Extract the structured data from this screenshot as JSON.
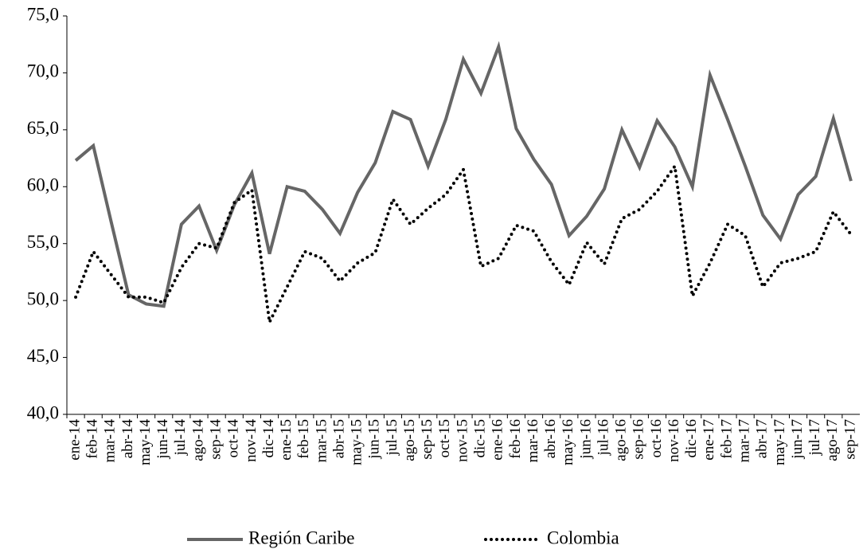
{
  "chart_data": {
    "type": "line",
    "categories": [
      "ene-14",
      "feb-14",
      "mar-14",
      "abr-14",
      "may-14",
      "jun-14",
      "jul-14",
      "ago-14",
      "sep-14",
      "oct-14",
      "nov-14",
      "dic-14",
      "ene-15",
      "feb-15",
      "mar-15",
      "abr-15",
      "may-15",
      "jun-15",
      "jul-15",
      "ago-15",
      "sep-15",
      "oct-15",
      "nov-15",
      "dic-15",
      "ene-16",
      "feb-16",
      "mar-16",
      "abr-16",
      "may-16",
      "jun-16",
      "jul-16",
      "ago-16",
      "sep-16",
      "oct-16",
      "nov-16",
      "dic-16",
      "ene-17",
      "feb-17",
      "mar-17",
      "abr-17",
      "may-17",
      "jun-17",
      "jul-17",
      "ago-17",
      "sep-17"
    ],
    "series": [
      {
        "name": "Región Caribe",
        "color": "#666666",
        "style": "solid",
        "values": [
          62.3,
          63.6,
          57.0,
          50.5,
          49.7,
          49.5,
          56.7,
          58.3,
          54.4,
          58.4,
          61.2,
          54.1,
          60.0,
          59.6,
          58.0,
          55.9,
          59.5,
          62.1,
          66.6,
          65.9,
          61.8,
          65.9,
          71.2,
          68.2,
          72.3,
          65.1,
          62.4,
          60.2,
          55.7,
          57.4,
          59.8,
          65.0,
          61.7,
          65.8,
          63.5,
          60.0,
          69.8,
          65.9,
          61.8,
          57.5,
          55.4,
          59.3,
          60.9,
          66.0,
          60.5
        ]
      },
      {
        "name": "Colombia",
        "color": "#000000",
        "style": "dotted",
        "values": [
          50.3,
          54.3,
          52.3,
          50.3,
          50.3,
          49.8,
          52.9,
          55.0,
          54.6,
          58.6,
          59.7,
          48.1,
          51.2,
          54.3,
          53.7,
          51.7,
          53.3,
          54.2,
          58.9,
          56.7,
          58.1,
          59.3,
          61.5,
          53.0,
          53.7,
          56.6,
          56.1,
          53.4,
          51.4,
          55.1,
          53.2,
          57.2,
          58.0,
          59.6,
          61.8,
          50.4,
          53.3,
          56.7,
          55.7,
          51.2,
          53.3,
          53.7,
          54.3,
          57.8,
          55.8
        ]
      }
    ],
    "ylim": [
      40,
      75
    ],
    "yticks": [
      {
        "value": 40,
        "label": "40,0"
      },
      {
        "value": 45,
        "label": "45,0"
      },
      {
        "value": 50,
        "label": "50,0"
      },
      {
        "value": 55,
        "label": "55,0"
      },
      {
        "value": 60,
        "label": "60,0"
      },
      {
        "value": 65,
        "label": "65,0"
      },
      {
        "value": 70,
        "label": "70,0"
      },
      {
        "value": 75,
        "label": "75,0"
      }
    ],
    "grid": false,
    "legend": "bottom"
  }
}
